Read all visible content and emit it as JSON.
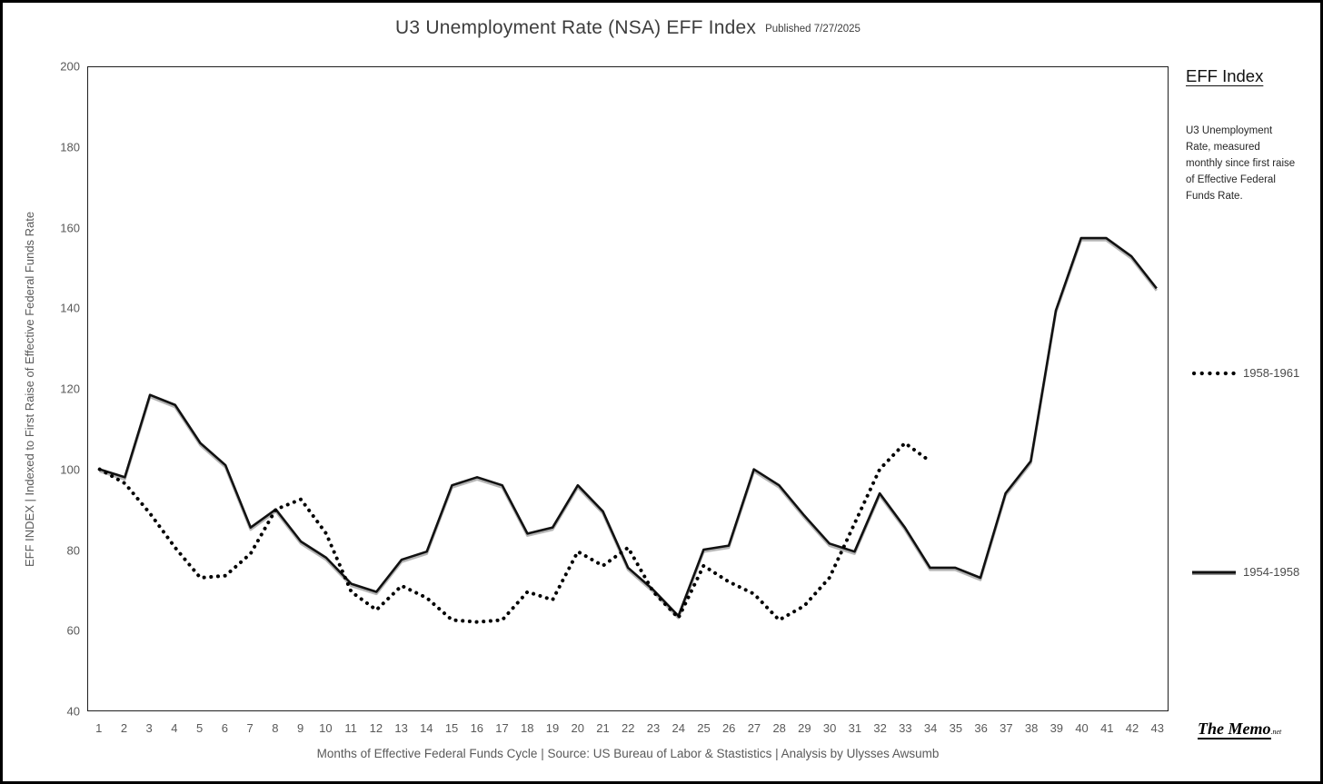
{
  "header": {
    "title": "U3 Unemployment Rate (NSA) EFF Index",
    "published": "Published 7/27/2025"
  },
  "side_panel": {
    "heading": "EFF Index",
    "description": "U3 Unemployment Rate, measured monthly since first raise of Effective Federal Funds Rate."
  },
  "legend": {
    "items": [
      {
        "label": "1958-1961",
        "style": "dotted"
      },
      {
        "label": "1954-1958",
        "style": "solid"
      }
    ]
  },
  "branding": {
    "name": "The Memo",
    "suffix": ".net"
  },
  "chart_data": {
    "type": "line",
    "title": "U3 Unemployment Rate (NSA) EFF Index",
    "xlabel": "Months of Effective Federal Funds Cycle | Source: US Bureau of Labor & Stastistics | Analysis by Ulysses Awsumb",
    "ylabel": "EFF INDEX | Indexed to First Raise of Effective Federal Funds Rate",
    "ylim": [
      40,
      200
    ],
    "yticks": [
      40,
      60,
      80,
      100,
      120,
      140,
      160,
      180,
      200
    ],
    "grid": false,
    "legend_position": "right",
    "x": [
      1,
      2,
      3,
      4,
      5,
      6,
      7,
      8,
      9,
      10,
      11,
      12,
      13,
      14,
      15,
      16,
      17,
      18,
      19,
      20,
      21,
      22,
      23,
      24,
      25,
      26,
      27,
      28,
      29,
      30,
      31,
      32,
      33,
      34,
      35,
      36,
      37,
      38,
      39,
      40,
      41,
      42,
      43
    ],
    "series": [
      {
        "name": "1954-1958",
        "style": "solid",
        "color": "#111111",
        "values": [
          100,
          98,
          118.5,
          116,
          106.5,
          101,
          85.5,
          90,
          82,
          78,
          71.5,
          69.5,
          77.5,
          79.5,
          96,
          98,
          96,
          84,
          85.5,
          96,
          89.5,
          75.5,
          70,
          63.5,
          80,
          81,
          100,
          96,
          88.5,
          81.5,
          79.5,
          94,
          85.5,
          75.5,
          75.5,
          73,
          94,
          102,
          139.5,
          157.5,
          157.5,
          153,
          145
        ]
      },
      {
        "name": "1958-1961",
        "style": "dotted",
        "color": "#000000",
        "values": [
          100,
          96.5,
          89,
          80.5,
          73,
          73.5,
          79,
          90,
          92.5,
          84,
          69.5,
          65,
          71,
          68,
          62.5,
          62,
          62.5,
          69.5,
          67.5,
          79.5,
          76,
          80.5,
          69.5,
          63,
          76,
          72,
          69,
          62.5,
          66,
          73,
          86.5,
          100,
          106.5,
          102
        ]
      }
    ]
  }
}
